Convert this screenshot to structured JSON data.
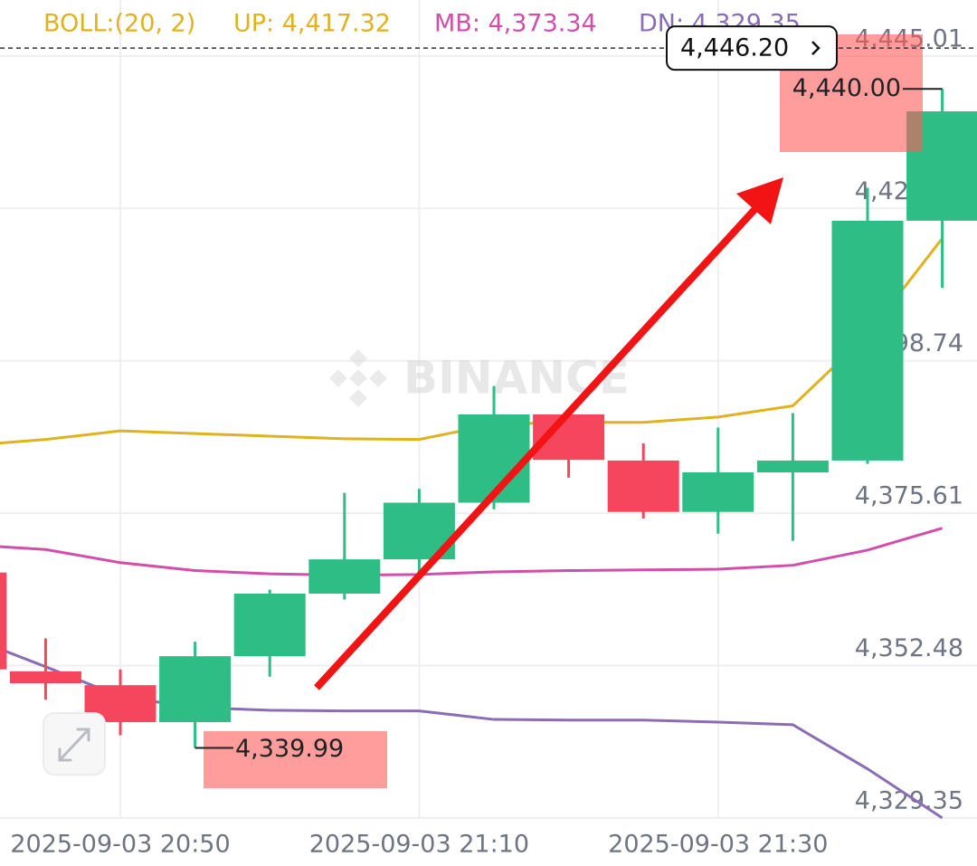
{
  "chart_data": {
    "type": "candlestick",
    "indicator": "BOLL:(20, 2)",
    "watermark": "BINANCE",
    "categories": [
      null,
      null,
      "2025-09-03 20:50",
      null,
      null,
      null,
      "2025-09-03 21:10",
      null,
      null,
      null,
      "2025-09-03 21:30",
      null,
      null,
      null
    ],
    "open": [
      4366.6,
      4351.6,
      4349.5,
      4343.9,
      4353.9,
      4363.4,
      4368.6,
      4377.2,
      4390.6,
      4383.6,
      4375.8,
      4381.8,
      4383.6,
      4420.0
    ],
    "high": [
      4366.6,
      4356.6,
      4351.9,
      4356.1,
      4364.0,
      4378.7,
      4379.3,
      4394.9,
      4390.6,
      4386.2,
      4388.6,
      4390.8,
      4425.0,
      4440.0
    ],
    "low": [
      4351.9,
      4347.3,
      4341.9,
      4339.99,
      4350.8,
      4362.5,
      4366.6,
      4376.2,
      4381.0,
      4374.8,
      4372.5,
      4371.4,
      4383.1,
      4409.8
    ],
    "close": [
      4351.9,
      4349.8,
      4343.9,
      4353.9,
      4363.4,
      4368.6,
      4377.2,
      4390.6,
      4383.7,
      4375.8,
      4381.8,
      4383.6,
      4420.0,
      4436.6
    ],
    "up_color": "#2ebd85",
    "down_color": "#f6465d",
    "series": [
      {
        "name": "UP: 4,417.32",
        "color": "#e0b21f",
        "values": [
          4385.9,
          4386.8,
          4388.1,
          4387.7,
          4387.3,
          4386.9,
          4386.8,
          4389.1,
          4389.4,
          4389.4,
          4390.2,
          4391.9,
          4402.7,
          4417.32
        ]
      },
      {
        "name": "MB: 4,373.34",
        "color": "#d24ea8",
        "values": [
          4370.8,
          4370.1,
          4368.1,
          4366.9,
          4366.4,
          4366.2,
          4366.3,
          4366.7,
          4366.9,
          4367.0,
          4367.1,
          4367.7,
          4370.0,
          4373.34
        ]
      },
      {
        "name": "DN: 4,329.35",
        "color": "#8a6db4",
        "values": [
          4356.7,
          4352.3,
          4347.8,
          4346.1,
          4345.7,
          4345.6,
          4345.6,
          4344.3,
          4344.2,
          4344.2,
          4343.9,
          4343.5,
          4336.8,
          4329.35
        ]
      }
    ],
    "last_price": 4446.2,
    "last_price_label": "4,446.20",
    "annotations": [
      {
        "value": 4440.0,
        "label": "4,440.00"
      },
      {
        "value": 4339.99,
        "label": "4,339.99"
      }
    ],
    "ylim": [
      4329.2,
      4453.5
    ],
    "yticks": [
      {
        "value": 4445.01,
        "label": "4,445.01"
      },
      {
        "value": 4421.87,
        "label": "4,421.87"
      },
      {
        "value": 4398.74,
        "label": "4,398.74"
      },
      {
        "value": 4375.61,
        "label": "4,375.61"
      },
      {
        "value": 4352.48,
        "label": "4,352.48"
      },
      {
        "value": 4329.35,
        "label": "4,329.35"
      }
    ],
    "grid": true
  }
}
